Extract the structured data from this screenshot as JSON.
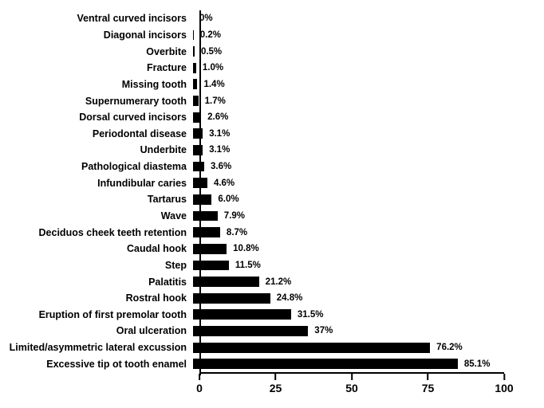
{
  "chart": {
    "type": "bar",
    "orientation": "horizontal",
    "background_color": "#ffffff",
    "bar_color": "#000000",
    "text_color": "#000000",
    "axis_color": "#000000",
    "label_fontsize": 12.5,
    "value_fontsize": 11.5,
    "tick_fontsize": 14,
    "font_weight": 700,
    "bar_height_ratio": 0.62,
    "xlim": [
      0,
      100
    ],
    "xticks": [
      0,
      25,
      50,
      75,
      100
    ],
    "items": [
      {
        "label": "Ventral curved incisors",
        "value": 0,
        "display": "0%"
      },
      {
        "label": "Diagonal incisors",
        "value": 0.2,
        "display": "0.2%"
      },
      {
        "label": "Overbite",
        "value": 0.5,
        "display": "0.5%"
      },
      {
        "label": "Fracture",
        "value": 1.0,
        "display": "1.0%"
      },
      {
        "label": "Missing tooth",
        "value": 1.4,
        "display": "1.4%"
      },
      {
        "label": "Supernumerary tooth",
        "value": 1.7,
        "display": "1.7%"
      },
      {
        "label": "Dorsal curved incisors",
        "value": 2.6,
        "display": "2.6%"
      },
      {
        "label": "Periodontal disease",
        "value": 3.1,
        "display": "3.1%"
      },
      {
        "label": "Underbite",
        "value": 3.1,
        "display": "3.1%"
      },
      {
        "label": "Pathological diastema",
        "value": 3.6,
        "display": "3.6%"
      },
      {
        "label": "Infundibular caries",
        "value": 4.6,
        "display": "4.6%"
      },
      {
        "label": "Tartarus",
        "value": 6.0,
        "display": "6.0%"
      },
      {
        "label": "Wave",
        "value": 7.9,
        "display": "7.9%"
      },
      {
        "label": "Deciduos cheek teeth retention",
        "value": 8.7,
        "display": "8.7%"
      },
      {
        "label": "Caudal hook",
        "value": 10.8,
        "display": "10.8%"
      },
      {
        "label": "Step",
        "value": 11.5,
        "display": "11.5%"
      },
      {
        "label": "Palatitis",
        "value": 21.2,
        "display": "21.2%"
      },
      {
        "label": "Rostral hook",
        "value": 24.8,
        "display": "24.8%"
      },
      {
        "label": "Eruption of first premolar tooth",
        "value": 31.5,
        "display": "31.5%"
      },
      {
        "label": "Oral ulceration",
        "value": 37,
        "display": "37%"
      },
      {
        "label": "Limited/asymmetric lateral excussion",
        "value": 76.2,
        "display": "76.2%"
      },
      {
        "label": "Excessive tip ot tooth enamel",
        "value": 85.1,
        "display": "85.1%"
      }
    ]
  }
}
